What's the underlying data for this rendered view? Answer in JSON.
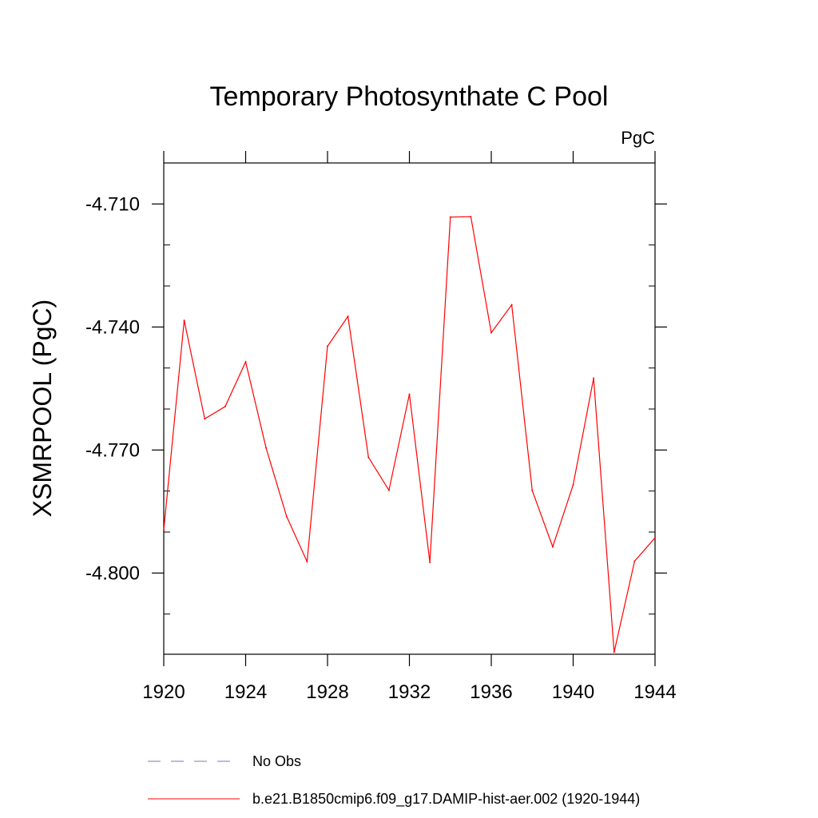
{
  "chart_data": {
    "type": "line",
    "title": "Temporary Photosynthate C Pool",
    "units_label": "PgC",
    "xlabel": "",
    "ylabel": "XSMRPOOL  (PgC)",
    "xlim": [
      1920,
      1944
    ],
    "ylim": [
      -4.8198,
      -4.7
    ],
    "x_ticks": [
      1920,
      1924,
      1928,
      1932,
      1936,
      1940,
      1944
    ],
    "x_tick_labels": [
      "1920",
      "1924",
      "1928",
      "1932",
      "1936",
      "1940",
      "1944"
    ],
    "y_ticks": [
      -4.71,
      -4.74,
      -4.77,
      -4.8
    ],
    "y_tick_labels": [
      "-4.710",
      "-4.740",
      "-4.770",
      "-4.800"
    ],
    "y_minor_step": 0.01,
    "grid": false,
    "legend_position": "bottom",
    "series": [
      {
        "name": "b.e21.B1850cmip6.f09_g17.DAMIP-hist-aer.002 (1920-1944)",
        "color": "#ff0000",
        "style": "solid",
        "x": [
          1920,
          1921,
          1922,
          1923,
          1924,
          1925,
          1926,
          1927,
          1928,
          1929,
          1930,
          1931,
          1932,
          1933,
          1934,
          1935,
          1936,
          1937,
          1938,
          1939,
          1940,
          1941,
          1942,
          1943,
          1944
        ],
        "values": [
          -4.7895,
          -4.7384,
          -4.7624,
          -4.7594,
          -4.7485,
          -4.7695,
          -4.7862,
          -4.7972,
          -4.7447,
          -4.7374,
          -4.7718,
          -4.7798,
          -4.7564,
          -4.7974,
          -4.7132,
          -4.7131,
          -4.7414,
          -4.7346,
          -4.7799,
          -4.7936,
          -4.7785,
          -4.7525,
          -4.8193,
          -4.7971,
          -4.7914
        ]
      },
      {
        "name": "No Obs",
        "color": "#7777bb",
        "style": "dashed",
        "x": [],
        "values": []
      }
    ]
  }
}
